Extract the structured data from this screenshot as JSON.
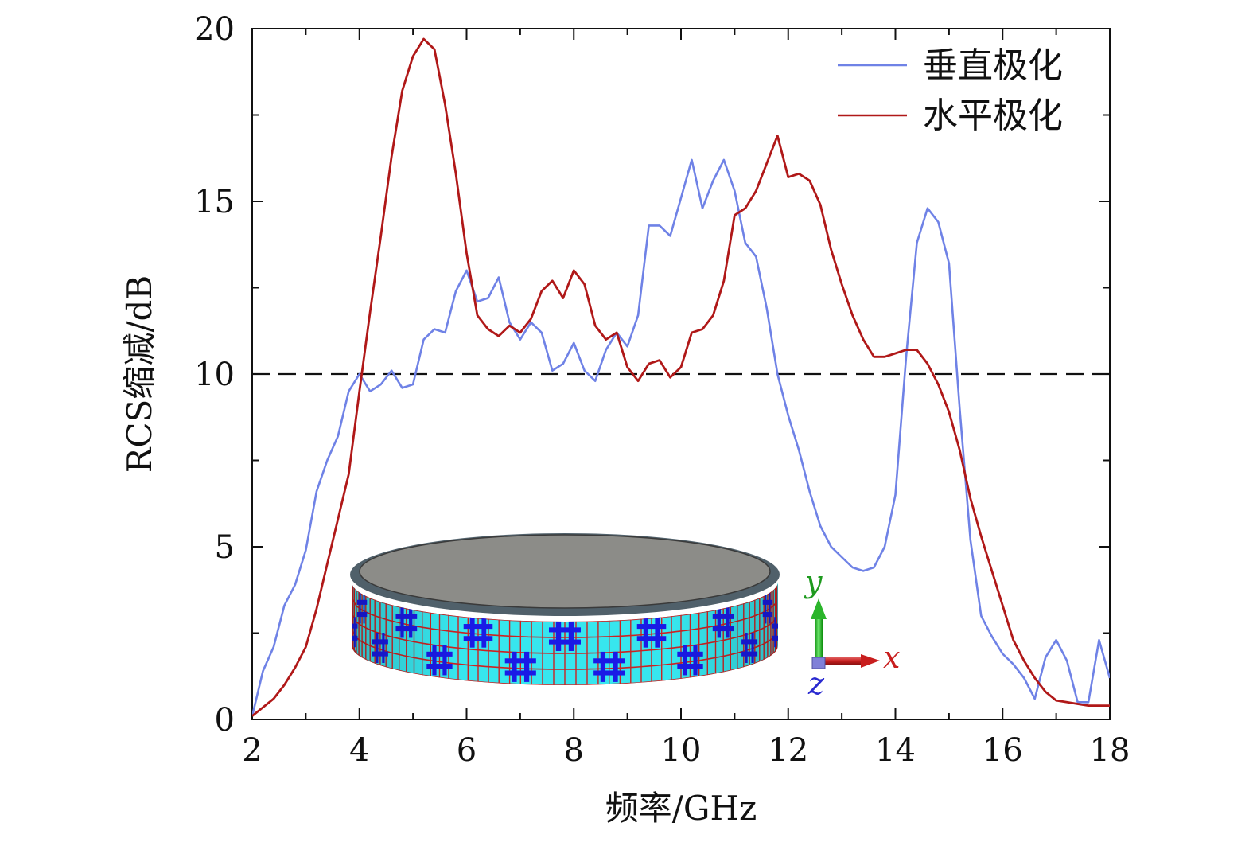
{
  "chart_data": {
    "type": "line",
    "xlabel": "频率/GHz",
    "ylabel": "RCS缩减/dB",
    "xlim": [
      2,
      18
    ],
    "ylim": [
      0,
      20
    ],
    "x_ticks": [
      2,
      4,
      6,
      8,
      10,
      12,
      14,
      16,
      18
    ],
    "y_ticks": [
      0,
      5,
      10,
      15,
      20
    ],
    "x_tick_labels": [
      "2",
      "4",
      "6",
      "8",
      "10",
      "12",
      "14",
      "16",
      "18"
    ],
    "y_tick_labels": [
      "0",
      "5",
      "10",
      "15",
      "20"
    ],
    "grid": false,
    "legend": "top-right",
    "reference_line": {
      "y": 10,
      "style": "dashed",
      "color": "#111111"
    },
    "series": [
      {
        "name": "垂直极化",
        "color": "#6f82e6",
        "x": [
          2.0,
          2.2,
          2.4,
          2.6,
          2.8,
          3.0,
          3.2,
          3.4,
          3.6,
          3.8,
          4.0,
          4.2,
          4.4,
          4.6,
          4.8,
          5.0,
          5.2,
          5.4,
          5.6,
          5.8,
          6.0,
          6.2,
          6.4,
          6.6,
          6.8,
          7.0,
          7.2,
          7.4,
          7.6,
          7.8,
          8.0,
          8.2,
          8.4,
          8.6,
          8.8,
          9.0,
          9.2,
          9.4,
          9.6,
          9.8,
          10.0,
          10.2,
          10.4,
          10.6,
          10.8,
          11.0,
          11.2,
          11.4,
          11.6,
          11.8,
          12.0,
          12.2,
          12.4,
          12.6,
          12.8,
          13.0,
          13.2,
          13.4,
          13.6,
          13.8,
          14.0,
          14.2,
          14.4,
          14.6,
          14.8,
          15.0,
          15.2,
          15.4,
          15.6,
          15.8,
          16.0,
          16.2,
          16.4,
          16.6,
          16.8,
          17.0,
          17.2,
          17.4,
          17.6,
          17.8,
          18.0
        ],
        "values": [
          0.1,
          1.4,
          2.1,
          3.3,
          3.9,
          4.9,
          6.6,
          7.5,
          8.2,
          9.5,
          10.0,
          9.5,
          9.7,
          10.1,
          9.6,
          9.7,
          11.0,
          11.3,
          11.2,
          12.4,
          13.0,
          12.1,
          12.2,
          12.8,
          11.5,
          11.0,
          11.5,
          11.2,
          10.1,
          10.3,
          10.9,
          10.1,
          9.8,
          10.7,
          11.2,
          10.8,
          11.7,
          14.3,
          14.3,
          14.0,
          15.1,
          16.2,
          14.8,
          15.6,
          16.2,
          15.3,
          13.8,
          13.4,
          11.9,
          10.0,
          8.8,
          7.8,
          6.6,
          5.6,
          5.0,
          4.7,
          4.4,
          4.3,
          4.4,
          5.0,
          6.5,
          10.5,
          13.8,
          14.8,
          14.4,
          13.2,
          9.0,
          5.2,
          3.0,
          2.4,
          1.9,
          1.6,
          1.2,
          0.6,
          1.8,
          2.3,
          1.7,
          0.5,
          0.5,
          2.3,
          1.2
        ]
      },
      {
        "name": "水平极化",
        "color": "#b01818",
        "x": [
          2.0,
          2.2,
          2.4,
          2.6,
          2.8,
          3.0,
          3.2,
          3.4,
          3.6,
          3.8,
          4.0,
          4.2,
          4.4,
          4.6,
          4.8,
          5.0,
          5.2,
          5.4,
          5.6,
          5.8,
          6.0,
          6.2,
          6.4,
          6.6,
          6.8,
          7.0,
          7.2,
          7.4,
          7.6,
          7.8,
          8.0,
          8.2,
          8.4,
          8.6,
          8.8,
          9.0,
          9.2,
          9.4,
          9.6,
          9.8,
          10.0,
          10.2,
          10.4,
          10.6,
          10.8,
          11.0,
          11.2,
          11.4,
          11.6,
          11.8,
          12.0,
          12.2,
          12.4,
          12.6,
          12.8,
          13.0,
          13.2,
          13.4,
          13.6,
          13.8,
          14.0,
          14.2,
          14.4,
          14.6,
          14.8,
          15.0,
          15.2,
          15.4,
          15.6,
          15.8,
          16.0,
          16.2,
          16.4,
          16.6,
          16.8,
          17.0,
          17.2,
          17.4,
          17.6,
          17.8,
          18.0
        ],
        "values": [
          0.1,
          0.35,
          0.6,
          1.0,
          1.5,
          2.1,
          3.2,
          4.5,
          5.8,
          7.1,
          9.5,
          11.8,
          14.0,
          16.3,
          18.2,
          19.2,
          19.7,
          19.4,
          17.8,
          15.8,
          13.5,
          11.7,
          11.3,
          11.1,
          11.4,
          11.2,
          11.6,
          12.4,
          12.7,
          12.2,
          13.0,
          12.6,
          11.4,
          11.0,
          11.2,
          10.2,
          9.8,
          10.3,
          10.4,
          9.9,
          10.2,
          11.2,
          11.3,
          11.7,
          12.7,
          14.6,
          14.8,
          15.3,
          16.1,
          16.9,
          15.7,
          15.8,
          15.6,
          14.9,
          13.6,
          12.6,
          11.7,
          11.0,
          10.5,
          10.5,
          10.6,
          10.7,
          10.7,
          10.3,
          9.7,
          8.9,
          7.8,
          6.4,
          5.3,
          4.3,
          3.3,
          2.3,
          1.7,
          1.2,
          0.8,
          0.55,
          0.5,
          0.45,
          0.4,
          0.4,
          0.4
        ]
      }
    ]
  },
  "inset": {
    "axis_x_letter": "x",
    "axis_y_letter": "y",
    "axis_z_letter": "z",
    "cylinder_top_color": "#8c8c88",
    "cylinder_side_color": "#37e6ee",
    "pattern_color": "#1a1ae6",
    "grid_line_color": "#cc2222"
  }
}
